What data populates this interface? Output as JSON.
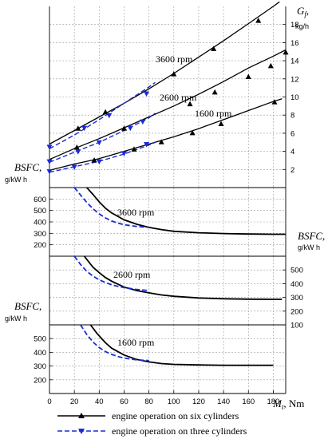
{
  "labels": {
    "gf_symbol": "G",
    "gf_sub": "f",
    "gf_comma": ",",
    "gf_unit": "kg/h",
    "bsfc_text": "BSFC,",
    "bsfc_unit": "g/kW h",
    "mt_symbol": "M",
    "mt_sub": "t",
    "mt_unit": ", Nm"
  },
  "legend": {
    "six": "engine operation on six cylinders",
    "three": "engine operation on three cylinders"
  },
  "colors": {
    "six": "#000000",
    "three": "#1a2bd6",
    "grid": "#9a9a9a"
  },
  "chart_data": [
    {
      "id": "gf",
      "type": "line",
      "xlabel": "M_t, Nm",
      "ylabel": "G_f, kg/h",
      "xlim": [
        0,
        190
      ],
      "ylim": [
        0,
        20
      ],
      "x_ticks": [
        0,
        20,
        40,
        60,
        80,
        100,
        120,
        140,
        160,
        180
      ],
      "y_ticks": [
        2,
        4,
        6,
        8,
        10,
        12,
        14,
        16,
        18
      ],
      "y_axis_side": "right",
      "grid": true,
      "annotations": [
        "3600 rpm",
        "2600 rpm",
        "1600 rpm"
      ],
      "series": [
        {
          "speed": "3600 rpm",
          "cylinders": 6,
          "x": [
            0,
            20,
            40,
            60,
            80,
            100,
            120,
            140,
            160,
            180,
            185
          ],
          "y": [
            4.8,
            6.3,
            7.8,
            9.3,
            10.9,
            12.6,
            14.4,
            16.2,
            18.1,
            20.0,
            20.5
          ]
        },
        {
          "speed": "3600 rpm",
          "cylinders": 6,
          "markers": true,
          "x": [
            23,
            45,
            100,
            132,
            168
          ],
          "y": [
            6.5,
            8.3,
            12.5,
            15.3,
            18.4
          ]
        },
        {
          "speed": "3600 rpm",
          "cylinders": 3,
          "x": [
            0,
            20,
            40,
            60,
            80,
            85
          ],
          "y": [
            4.3,
            5.8,
            7.5,
            9.3,
            11.1,
            11.6
          ]
        },
        {
          "speed": "3600 rpm",
          "cylinders": 3,
          "markers": true,
          "x": [
            0,
            28,
            48,
            78
          ],
          "y": [
            4.5,
            6.6,
            8.0,
            10.4
          ]
        },
        {
          "speed": "2600 rpm",
          "cylinders": 6,
          "x": [
            0,
            20,
            40,
            60,
            80,
            100,
            120,
            140,
            160,
            180,
            190
          ],
          "y": [
            3.1,
            4.3,
            5.4,
            6.6,
            7.8,
            9.0,
            10.3,
            11.7,
            13.2,
            14.5,
            15.2
          ]
        },
        {
          "speed": "2600 rpm",
          "cylinders": 6,
          "markers": true,
          "x": [
            22,
            60,
            113,
            133,
            160,
            178,
            190
          ],
          "y": [
            4.4,
            6.5,
            9.2,
            10.5,
            12.2,
            13.4,
            14.9
          ]
        },
        {
          "speed": "2600 rpm",
          "cylinders": 3,
          "x": [
            0,
            20,
            40,
            60,
            80,
            85
          ],
          "y": [
            2.8,
            3.9,
            5.0,
            6.3,
            7.7,
            8.2
          ]
        },
        {
          "speed": "2600 rpm",
          "cylinders": 3,
          "markers": true,
          "x": [
            0,
            23,
            40,
            65,
            75
          ],
          "y": [
            2.9,
            4.0,
            5.0,
            6.6,
            7.3
          ]
        },
        {
          "speed": "1600 rpm",
          "cylinders": 6,
          "x": [
            0,
            20,
            40,
            60,
            80,
            100,
            120,
            140,
            160,
            180,
            187
          ],
          "y": [
            1.9,
            2.6,
            3.2,
            4.0,
            4.8,
            5.6,
            6.5,
            7.5,
            8.5,
            9.5,
            9.8
          ]
        },
        {
          "speed": "1600 rpm",
          "cylinders": 6,
          "markers": true,
          "x": [
            36,
            68,
            90,
            115,
            138,
            181
          ],
          "y": [
            3.0,
            4.2,
            5.0,
            6.0,
            7.0,
            9.4
          ]
        },
        {
          "speed": "1600 rpm",
          "cylinders": 3,
          "x": [
            0,
            20,
            40,
            60,
            80,
            85
          ],
          "y": [
            1.7,
            2.3,
            2.9,
            3.7,
            4.7,
            5.0
          ]
        },
        {
          "speed": "1600 rpm",
          "cylinders": 3,
          "markers": true,
          "x": [
            0,
            20,
            40,
            60,
            78
          ],
          "y": [
            1.8,
            2.3,
            2.9,
            3.8,
            4.8
          ]
        }
      ]
    },
    {
      "id": "bsfc_3600",
      "type": "line",
      "annotation": "3600 rpm",
      "ylabel": "BSFC, g/kW h",
      "ylim": [
        100,
        700
      ],
      "y_ticks": [
        200,
        300,
        400,
        500,
        600
      ],
      "y_axis_side": "left",
      "series": [
        {
          "cylinders": 6,
          "x": [
            30,
            35,
            40,
            45,
            50,
            60,
            70,
            80,
            90,
            100,
            120,
            140,
            160,
            180,
            190
          ],
          "y": [
            700,
            640,
            575,
            520,
            478,
            418,
            380,
            352,
            333,
            318,
            305,
            298,
            294,
            292,
            292
          ]
        },
        {
          "cylinders": 3,
          "x": [
            20,
            25,
            30,
            35,
            40,
            45,
            50,
            55,
            60,
            70,
            80
          ],
          "y": [
            700,
            635,
            570,
            515,
            470,
            435,
            408,
            390,
            375,
            360,
            352
          ]
        }
      ]
    },
    {
      "id": "bsfc_2600",
      "type": "line",
      "annotation": "2600 rpm",
      "ylabel": "BSFC, g/kW h",
      "ylim": [
        100,
        600
      ],
      "y_ticks": [
        100,
        200,
        300,
        400,
        500
      ],
      "y_axis_side": "right",
      "series": [
        {
          "cylinders": 6,
          "x": [
            28,
            35,
            40,
            45,
            50,
            60,
            70,
            80,
            90,
            100,
            120,
            140,
            160,
            180,
            187
          ],
          "y": [
            600,
            520,
            480,
            445,
            418,
            375,
            350,
            333,
            318,
            308,
            296,
            290,
            287,
            286,
            286
          ]
        },
        {
          "cylinders": 3,
          "x": [
            20,
            25,
            30,
            35,
            40,
            45,
            50,
            55,
            60,
            70,
            80
          ],
          "y": [
            600,
            540,
            490,
            455,
            428,
            408,
            392,
            380,
            372,
            358,
            350
          ]
        }
      ]
    },
    {
      "id": "bsfc_1600",
      "type": "line",
      "annotation": "1600 rpm",
      "xlabel": "M_t, Nm",
      "ylabel": "BSFC, g/kW h",
      "xlim": [
        0,
        190
      ],
      "x_ticks": [
        0,
        20,
        40,
        60,
        80,
        100,
        120,
        140,
        160,
        180
      ],
      "ylim": [
        100,
        600
      ],
      "y_ticks": [
        200,
        300,
        400,
        500
      ],
      "y_axis_side": "left",
      "series": [
        {
          "cylinders": 6,
          "x": [
            33,
            38,
            45,
            50,
            60,
            70,
            80,
            90,
            100,
            120,
            140,
            160,
            180
          ],
          "y": [
            600,
            540,
            470,
            430,
            380,
            348,
            330,
            318,
            312,
            308,
            306,
            306,
            306
          ]
        },
        {
          "cylinders": 3,
          "x": [
            25,
            30,
            35,
            40,
            45,
            50,
            55,
            60,
            70,
            80
          ],
          "y": [
            600,
            530,
            475,
            435,
            405,
            385,
            370,
            358,
            345,
            340
          ]
        }
      ]
    }
  ]
}
